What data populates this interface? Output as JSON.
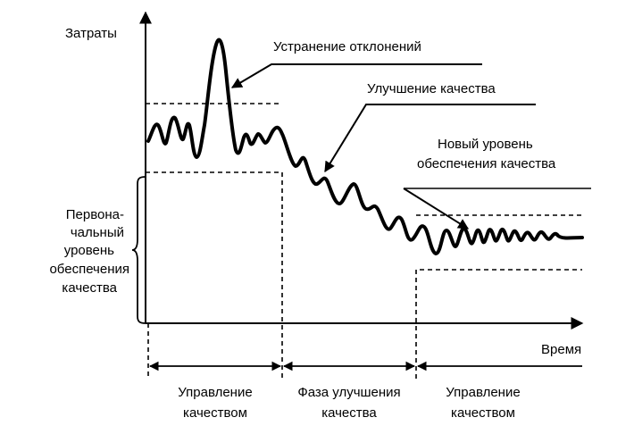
{
  "axes": {
    "y_label": "Затраты",
    "x_label": "Время"
  },
  "annotations": {
    "deviation_removal": "Устранение отклонений",
    "quality_improvement": "Улучшение качества",
    "new_level": [
      "Новый уровень",
      "обеспечения качества"
    ],
    "initial_level": [
      "Перво­на-",
      "чальный",
      "уровень",
      "обеспечения",
      "качества"
    ]
  },
  "phases": [
    {
      "label": [
        "Управление",
        "качеством"
      ]
    },
    {
      "label": [
        "Фаза улучшения",
        "качества"
      ]
    },
    {
      "label": [
        "Управление",
        "качеством"
      ]
    }
  ],
  "colors": {
    "ink": "#000000",
    "background": "#ffffff"
  }
}
